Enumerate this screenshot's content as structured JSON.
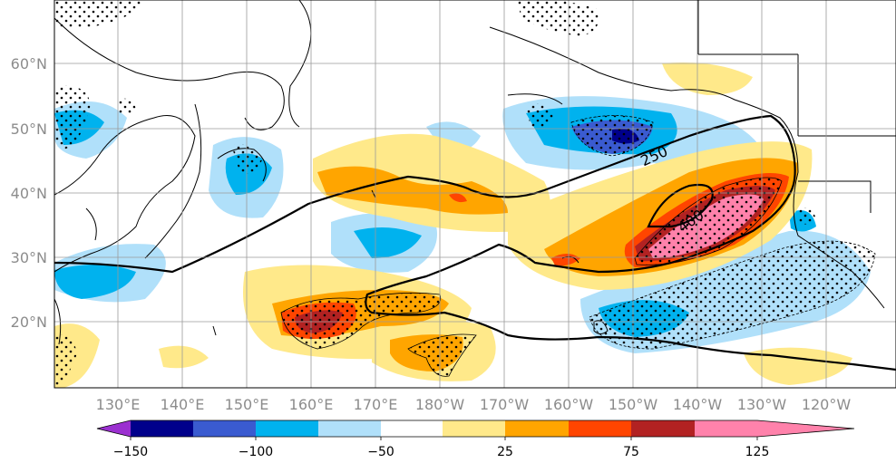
{
  "map": {
    "lat_labels": [
      "60°N",
      "50°N",
      "40°N",
      "30°N",
      "20°N"
    ],
    "lon_labels": [
      "130°E",
      "140°E",
      "150°E",
      "160°E",
      "170°E",
      "180°W",
      "170°W",
      "160°W",
      "150°W",
      "140°W",
      "130°W",
      "120°W"
    ],
    "contour_labels": [
      "250",
      "400"
    ]
  },
  "colorbar": {
    "colors": [
      "#9b30d0",
      "#00008b",
      "#3a5bd0",
      "#00b2ee",
      "#b0e0fa",
      "#ffffff",
      "#ffe98a",
      "#ffa500",
      "#ff4500",
      "#b22222",
      "#ff82ab"
    ],
    "tick_labels": [
      "−150",
      "−100",
      "−50",
      "25",
      "75",
      "125"
    ]
  },
  "colors": {
    "tick_label": "#8c8c8c",
    "grid": "#9a9a9a"
  }
}
